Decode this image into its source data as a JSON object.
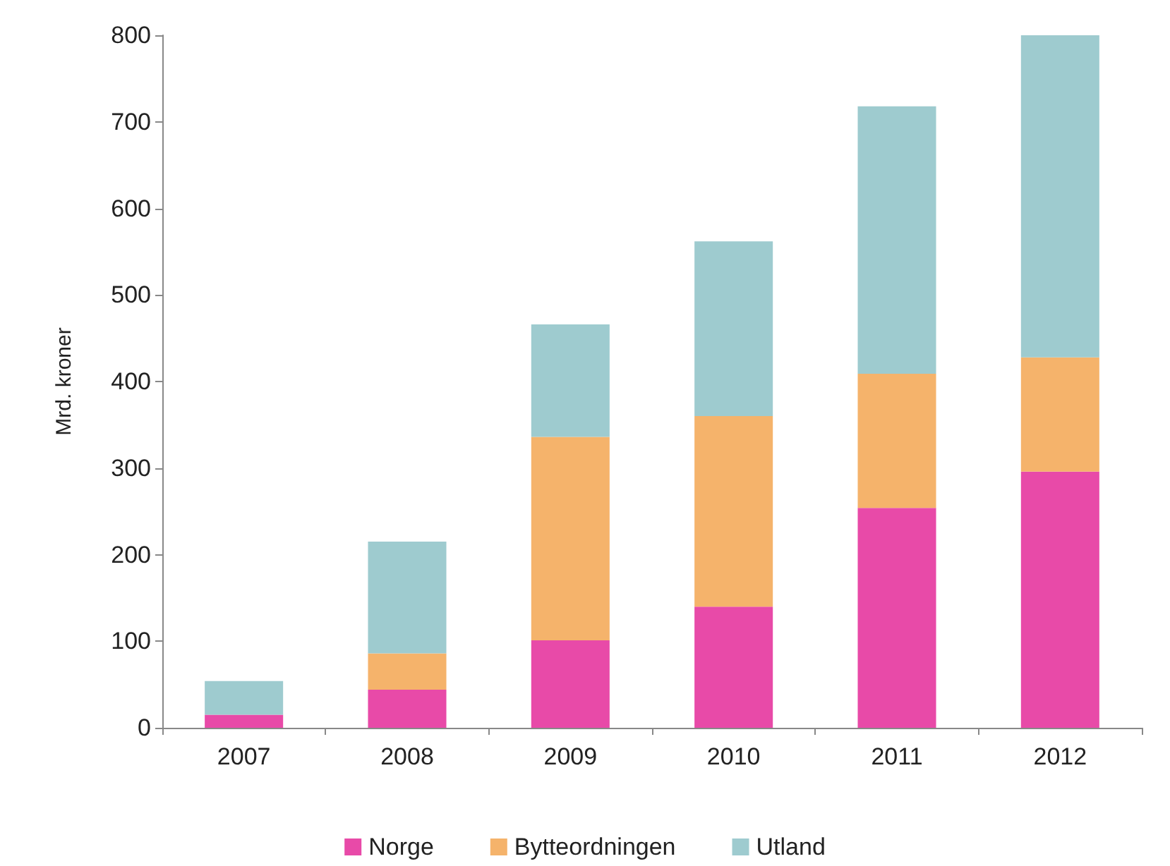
{
  "chart_data": {
    "type": "bar",
    "stacked": true,
    "ylabel": "Mrd. kroner",
    "categories": [
      "2007",
      "2008",
      "2009",
      "2010",
      "2011",
      "2012"
    ],
    "series": [
      {
        "name": "Norge",
        "color": "#e84aa8",
        "values": [
          15,
          44,
          101,
          140,
          254,
          296
        ]
      },
      {
        "name": "Bytteordningen",
        "color": "#f5b36b",
        "values": [
          0,
          42,
          235,
          220,
          155,
          132
        ]
      },
      {
        "name": "Utland",
        "color": "#9ecbcf",
        "values": [
          39,
          129,
          130,
          202,
          309,
          372
        ]
      }
    ],
    "ylim": [
      0,
      800
    ],
    "yticks": [
      0,
      100,
      200,
      300,
      400,
      500,
      600,
      700,
      800
    ],
    "grid": false,
    "legend": "bottom"
  }
}
